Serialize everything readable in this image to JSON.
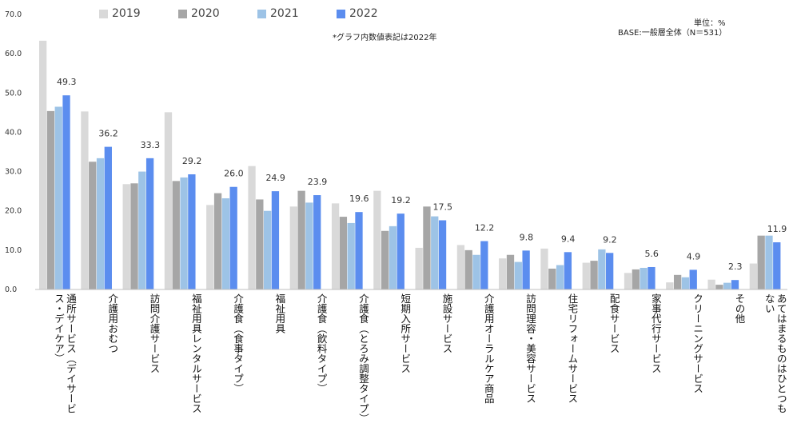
{
  "notes": {
    "unit": "単位：%",
    "base": "BASE:一般層全体（N＝531）",
    "graph_note": "*グラフ内数値表記は2022年"
  },
  "colors": {
    "2019": "#d9d9d9",
    "2020": "#a6a6a6",
    "2021": "#9dc3e6",
    "2022": "#5b8def"
  },
  "chart_data": {
    "type": "bar",
    "ylim": [
      0,
      70
    ],
    "yticks": [
      "0.0",
      "10.0",
      "20.0",
      "30.0",
      "40.0",
      "50.0",
      "60.0",
      "70.0"
    ],
    "grid": false,
    "legend_position": "top",
    "categories": [
      "通所サービス（デイサービス・デイケア）",
      "介護用おむつ",
      "訪問介護サービス",
      "福祉用具レンタルサービス",
      "介護食（食事タイプ）",
      "福祉用具",
      "介護食（飲料タイプ）",
      "介護食（とろみ調整タイプ）",
      "短期入所サービス",
      "施設サービス",
      "介護用オーラルケア商品",
      "訪問理容・美容サービス",
      "住宅リフォームサービス",
      "配食サービス",
      "家事代行サービス",
      "クリーニングサービス",
      "その他",
      "あてはまるものはひとつもない"
    ],
    "series": [
      {
        "name": "2019",
        "values": [
          63.2,
          45.2,
          26.7,
          45.0,
          21.4,
          31.3,
          21.0,
          21.8,
          25.0,
          10.5,
          11.2,
          7.8,
          10.3,
          6.7,
          4.1,
          1.7,
          2.4,
          6.5
        ]
      },
      {
        "name": "2020",
        "values": [
          45.3,
          32.4,
          26.9,
          27.5,
          24.4,
          22.8,
          25.0,
          18.4,
          14.8,
          21.0,
          9.9,
          8.7,
          5.2,
          7.2,
          5.0,
          3.6,
          1.1,
          13.6
        ]
      },
      {
        "name": "2021",
        "values": [
          46.4,
          33.3,
          29.9,
          28.4,
          23.1,
          19.9,
          22.0,
          16.8,
          16.0,
          18.5,
          8.7,
          6.9,
          6.1,
          10.1,
          5.4,
          3.0,
          1.6,
          13.6
        ]
      },
      {
        "name": "2022",
        "values": [
          49.3,
          36.2,
          33.3,
          29.2,
          26.0,
          24.9,
          23.9,
          19.6,
          19.2,
          17.5,
          12.2,
          9.8,
          9.4,
          9.2,
          5.6,
          4.9,
          2.3,
          11.9
        ]
      }
    ],
    "data_labels": [
      "49.3",
      "36.2",
      "33.3",
      "29.2",
      "26.0",
      "24.9",
      "23.9",
      "19.6",
      "19.2",
      "17.5",
      "12.2",
      "9.8",
      "9.4",
      "9.2",
      "5.6",
      "4.9",
      "2.3",
      "11.9"
    ]
  }
}
